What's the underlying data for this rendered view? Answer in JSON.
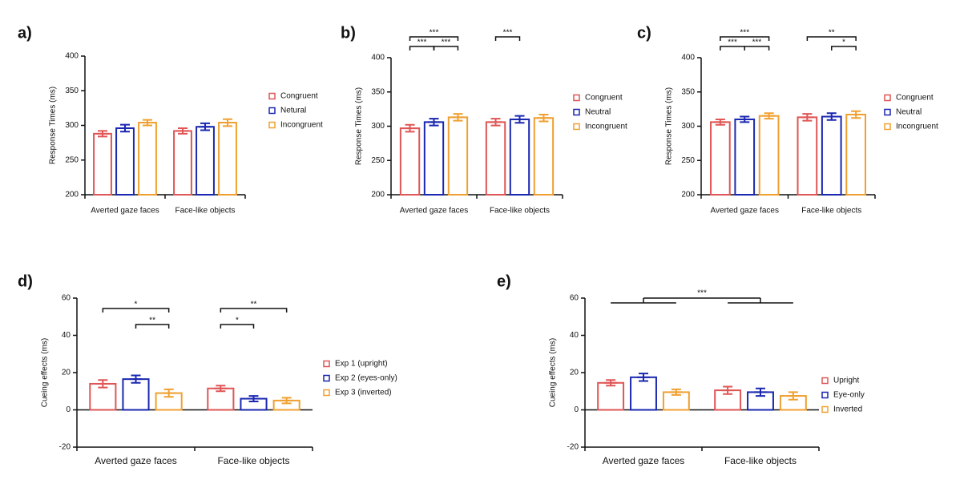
{
  "chart_data": [
    {
      "type": "bar",
      "label": "a)",
      "ylabel": "Response Times (ms)",
      "categories": [
        "Averted gaze faces",
        "Face-like objects"
      ],
      "series": [
        {
          "name": "Congruent",
          "color": "#e05555",
          "values": [
            288,
            292
          ],
          "errors": [
            4,
            4
          ]
        },
        {
          "name": "Netural",
          "color": "#1a27b0",
          "values": [
            296,
            298
          ],
          "errors": [
            5,
            5
          ]
        },
        {
          "name": "Incongruent",
          "color": "#f0a030",
          "values": [
            304,
            304
          ],
          "errors": [
            4,
            5
          ]
        }
      ],
      "ylim": [
        200,
        400
      ],
      "yticks": [
        200,
        250,
        300,
        350,
        400
      ],
      "annotations": []
    },
    {
      "type": "bar",
      "label": "b)",
      "ylabel": "Response Times (ms)",
      "categories": [
        "Averted gaze faces",
        "Face-like objects"
      ],
      "series": [
        {
          "name": "Congruent",
          "color": "#e05555",
          "values": [
            297,
            306
          ],
          "errors": [
            5,
            5
          ]
        },
        {
          "name": "Neutral",
          "color": "#1a27b0",
          "values": [
            306,
            310
          ],
          "errors": [
            5,
            5
          ]
        },
        {
          "name": "Incongruent",
          "color": "#f0a030",
          "values": [
            313,
            312
          ],
          "errors": [
            5,
            5
          ]
        }
      ],
      "ylim": [
        200,
        400
      ],
      "yticks": [
        200,
        250,
        300,
        350,
        400
      ],
      "annotations": [
        {
          "text": "***",
          "group": 0,
          "from": 0,
          "to": 2
        },
        {
          "text": "***",
          "group": 0,
          "from": 0,
          "to": 1
        },
        {
          "text": "***",
          "group": 0,
          "from": 1,
          "to": 2
        },
        {
          "text": "***",
          "group": 1,
          "from": 0,
          "to": 1
        }
      ]
    },
    {
      "type": "bar",
      "label": "c)",
      "ylabel": "Response Times (ms)",
      "categories": [
        "Averted gaze faces",
        "Face-like objects"
      ],
      "series": [
        {
          "name": "Congruent",
          "color": "#e05555",
          "values": [
            306,
            313
          ],
          "errors": [
            4,
            5
          ]
        },
        {
          "name": "Neutral",
          "color": "#1a27b0",
          "values": [
            310,
            314
          ],
          "errors": [
            4,
            5
          ]
        },
        {
          "name": "Incongruent",
          "color": "#f0a030",
          "values": [
            315,
            317
          ],
          "errors": [
            4,
            5
          ]
        }
      ],
      "ylim": [
        200,
        400
      ],
      "yticks": [
        200,
        250,
        300,
        350,
        400
      ],
      "annotations": [
        {
          "text": "***",
          "group": 0,
          "from": 0,
          "to": 2
        },
        {
          "text": "***",
          "group": 0,
          "from": 0,
          "to": 1
        },
        {
          "text": "***",
          "group": 0,
          "from": 1,
          "to": 2
        },
        {
          "text": "**",
          "group": 1,
          "from": 0,
          "to": 2
        },
        {
          "text": "*",
          "group": 1,
          "from": 1,
          "to": 2
        }
      ]
    },
    {
      "type": "bar",
      "label": "d)",
      "ylabel": "Cueing effects (ms)",
      "categories": [
        "Averted gaze faces",
        "Face-like objects"
      ],
      "series": [
        {
          "name": "Exp 1 (upright)",
          "color": "#e05555",
          "values": [
            14,
            11.5
          ],
          "errors": [
            2,
            1.5
          ]
        },
        {
          "name": "Exp 2 (eyes-only)",
          "color": "#1a27b0",
          "values": [
            16.5,
            6
          ],
          "errors": [
            2,
            1.5
          ]
        },
        {
          "name": "Exp 3 (inverted)",
          "color": "#f0a030",
          "values": [
            9,
            5
          ],
          "errors": [
            2,
            1.5
          ]
        }
      ],
      "ylim": [
        -20,
        60
      ],
      "yticks": [
        -20,
        0,
        20,
        40,
        60
      ],
      "annotations": [
        {
          "text": "*",
          "group": 0,
          "from": 0,
          "to": 2
        },
        {
          "text": "**",
          "group": 0,
          "from": 1,
          "to": 2
        },
        {
          "text": "**",
          "group": 1,
          "from": 0,
          "to": 2
        },
        {
          "text": "*",
          "group": 1,
          "from": 0,
          "to": 1
        }
      ]
    },
    {
      "type": "bar",
      "label": "e)",
      "ylabel": "Cueing effects (ms)",
      "categories": [
        "Averted gaze faces",
        "Face-like objects"
      ],
      "series": [
        {
          "name": "Upright",
          "color": "#e05555",
          "values": [
            14.5,
            10.5
          ],
          "errors": [
            1.5,
            2
          ]
        },
        {
          "name": "Eye-only",
          "color": "#1a27b0",
          "values": [
            17.5,
            9.5
          ],
          "errors": [
            2,
            2
          ]
        },
        {
          "name": "Inverted",
          "color": "#f0a030",
          "values": [
            9.5,
            7.5
          ],
          "errors": [
            1.5,
            2
          ]
        }
      ],
      "ylim": [
        -20,
        60
      ],
      "yticks": [
        -20,
        0,
        20,
        40,
        60
      ],
      "annotations": [
        {
          "text": "***",
          "from_group": 0,
          "to_group": 1
        }
      ]
    }
  ]
}
